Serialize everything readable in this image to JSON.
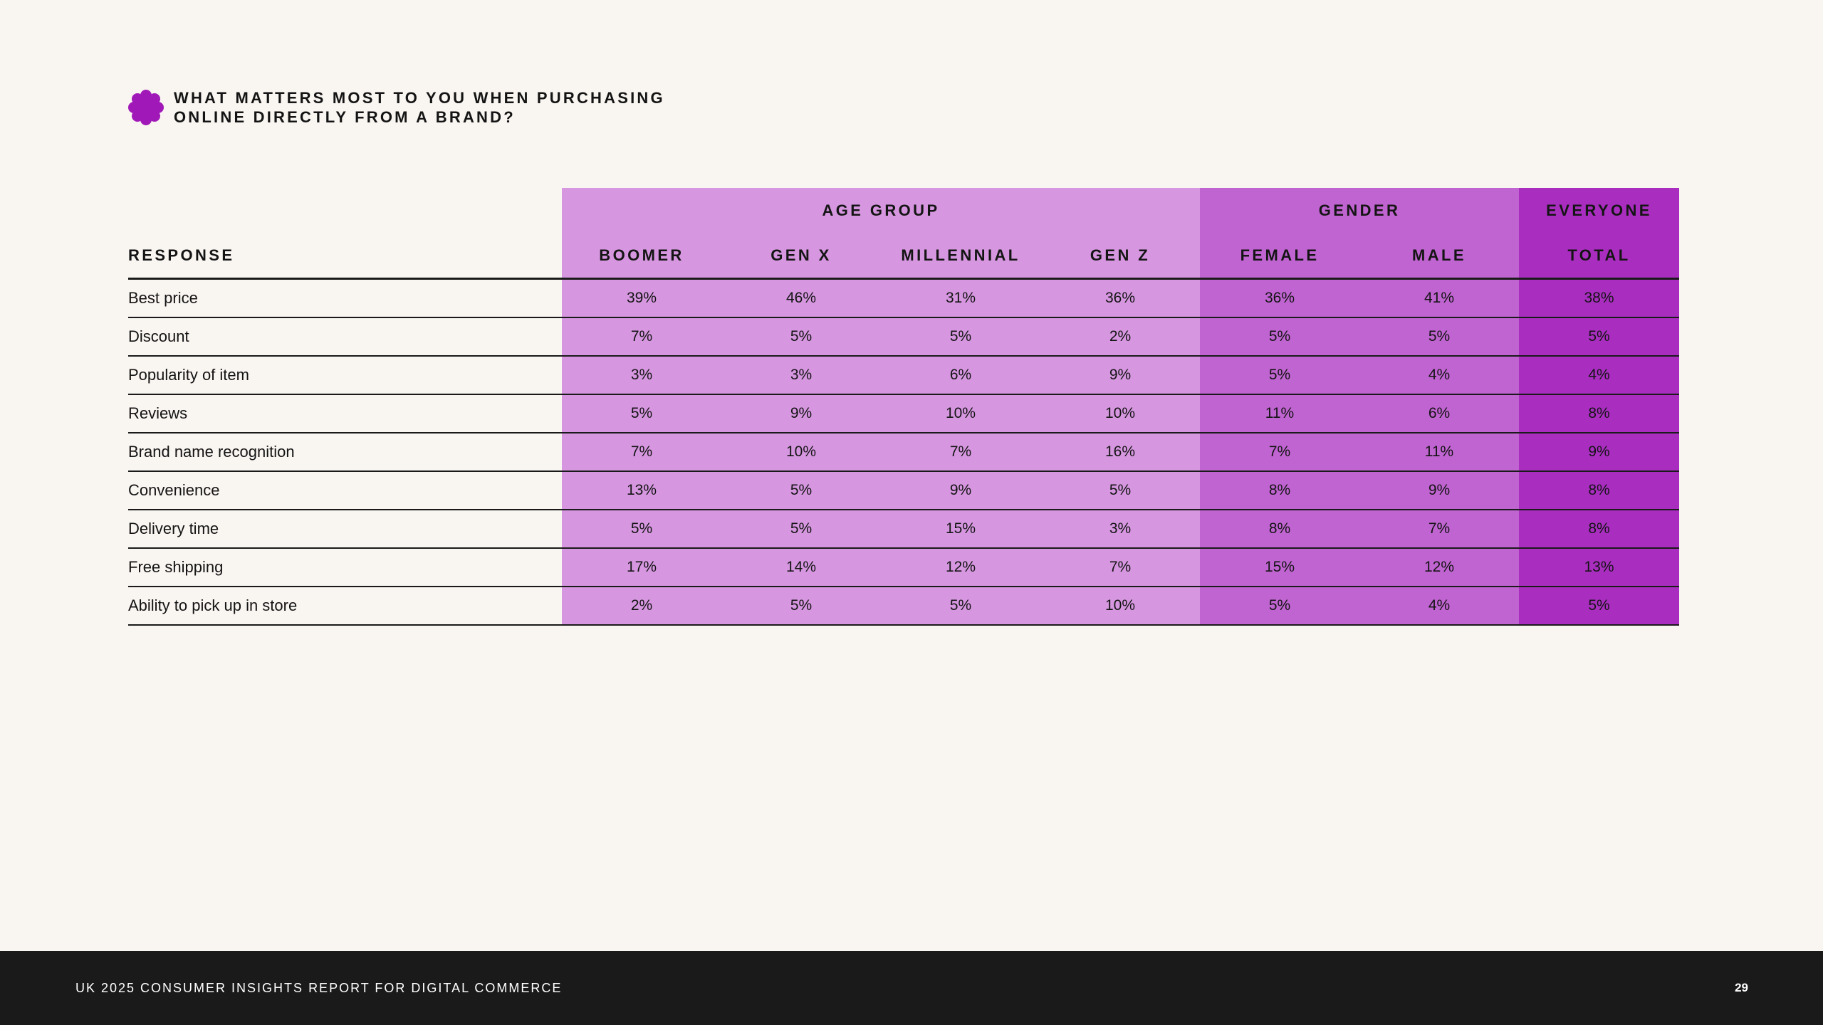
{
  "heading": {
    "icon": "flower-badge-icon",
    "icon_color": "#a019b8",
    "line1": "WHAT MATTERS MOST TO YOU WHEN PURCHASING",
    "line2": "ONLINE DIRECTLY FROM A BRAND?"
  },
  "colors": {
    "age_group": "#d697e0",
    "gender": "#c064d1",
    "everyone": "#a92ec0",
    "background": "#f9f5f1",
    "footer": "#1a1a1a"
  },
  "table": {
    "groups": {
      "age": "AGE GROUP",
      "gender": "GENDER",
      "everyone": "EVERYONE"
    },
    "columns": {
      "response": "RESPONSE",
      "boomer": "BOOMER",
      "genx": "GEN X",
      "millennial": "MILLENNIAL",
      "genz": "GEN Z",
      "female": "FEMALE",
      "male": "MALE",
      "total": "TOTAL"
    },
    "rows": [
      {
        "response": "Best price",
        "values": [
          "39%",
          "46%",
          "31%",
          "36%",
          "36%",
          "41%",
          "38%"
        ]
      },
      {
        "response": "Discount",
        "values": [
          "7%",
          "5%",
          "5%",
          "2%",
          "5%",
          "5%",
          "5%"
        ]
      },
      {
        "response": "Popularity of item",
        "values": [
          "3%",
          "3%",
          "6%",
          "9%",
          "5%",
          "4%",
          "4%"
        ]
      },
      {
        "response": "Reviews",
        "values": [
          "5%",
          "9%",
          "10%",
          "10%",
          "11%",
          "6%",
          "8%"
        ]
      },
      {
        "response": "Brand name recognition",
        "values": [
          "7%",
          "10%",
          "7%",
          "16%",
          "7%",
          "11%",
          "9%"
        ]
      },
      {
        "response": "Convenience",
        "values": [
          "13%",
          "5%",
          "9%",
          "5%",
          "8%",
          "9%",
          "8%"
        ]
      },
      {
        "response": "Delivery time",
        "values": [
          "5%",
          "5%",
          "15%",
          "3%",
          "8%",
          "7%",
          "8%"
        ]
      },
      {
        "response": "Free shipping",
        "values": [
          "17%",
          "14%",
          "12%",
          "7%",
          "15%",
          "12%",
          "13%"
        ]
      },
      {
        "response": "Ability to pick up in store",
        "values": [
          "2%",
          "5%",
          "5%",
          "10%",
          "5%",
          "4%",
          "5%"
        ]
      }
    ]
  },
  "footer": {
    "title": "UK 2025 CONSUMER INSIGHTS REPORT FOR DIGITAL COMMERCE",
    "page": "29"
  }
}
